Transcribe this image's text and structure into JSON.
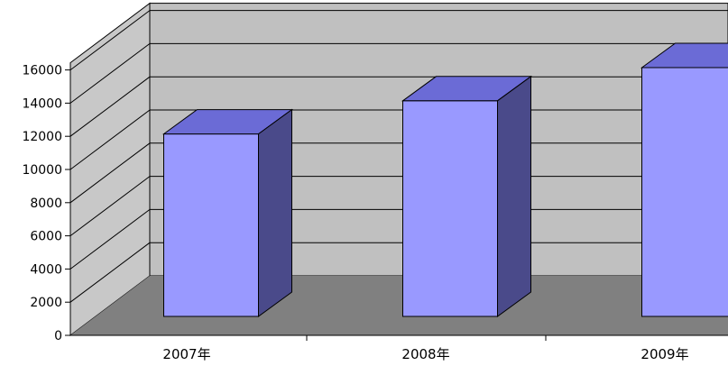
{
  "chart_data": {
    "type": "bar",
    "categories": [
      "2007年",
      "2008年",
      "2009年"
    ],
    "values": [
      11000,
      13000,
      15000
    ],
    "title": "",
    "xlabel": "",
    "ylabel": "",
    "ylim": [
      0,
      16000
    ],
    "yticks": [
      0,
      2000,
      4000,
      6000,
      8000,
      10000,
      12000,
      14000,
      16000
    ],
    "grid": true,
    "legend": "none",
    "colors": {
      "bar_front": "#9999ff",
      "bar_top": "#6b6bd6",
      "bar_side": "#4a4a8a",
      "back_wall": "#c0c0c0",
      "side_wall": "#c8c8c8",
      "floor": "#808080"
    }
  }
}
